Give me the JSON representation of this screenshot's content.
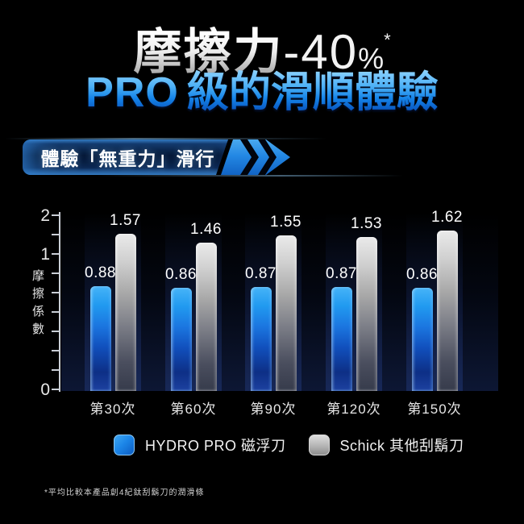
{
  "header": {
    "title_zh": "摩擦力",
    "title_reduction": "-40",
    "title_percent": "%",
    "title_asterisk": "*",
    "subtitle_latin": "PRO",
    "subtitle_zh": "級的滑順體驗"
  },
  "banner": {
    "text": "體驗「無重力」滑行"
  },
  "chart_data": {
    "type": "bar",
    "categories": [
      "第30次",
      "第60次",
      "第90次",
      "第120次",
      "第150次"
    ],
    "series": [
      {
        "name": "HYDRO PRO 磁浮刀",
        "color": "#1e88e5",
        "values": [
          0.88,
          0.86,
          0.87,
          0.87,
          0.86
        ]
      },
      {
        "name": "Schick 其他刮鬍刀",
        "color": "#9e9e9e",
        "values": [
          1.57,
          1.46,
          1.55,
          1.53,
          1.62
        ]
      }
    ],
    "xlabel": "",
    "ylabel": "摩擦係數",
    "ylim": [
      0,
      2
    ],
    "yticks": [
      0,
      1,
      2
    ],
    "grid": false,
    "legend_position": "bottom",
    "value_labels": true
  },
  "footnote": "*平均比較本產品創4紀鈦刮鬍刀的潤滑條"
}
